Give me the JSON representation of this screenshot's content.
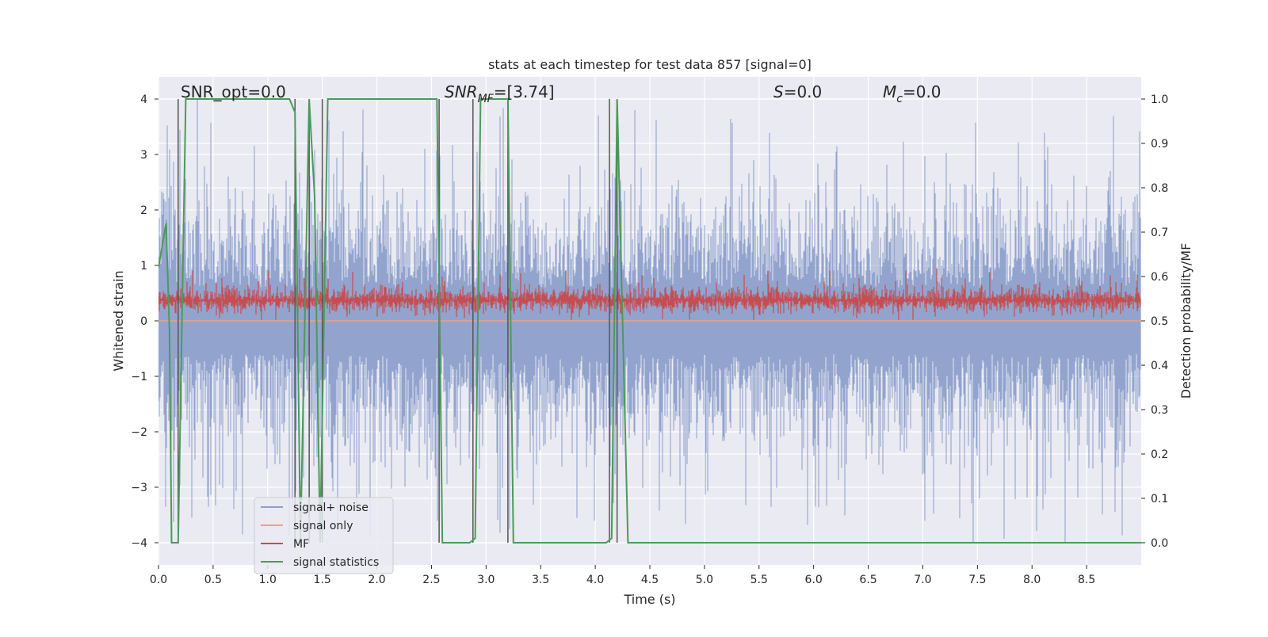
{
  "chart_data": {
    "type": "line",
    "title": "stats at each timestep for test data 857 [signal=0]",
    "xlabel": "Time (s)",
    "ylabel": "Whitened strain",
    "ylabel_right": "Detection probability/MF",
    "xlim": [
      0.0,
      9.0
    ],
    "ylim": [
      -4.4,
      4.4
    ],
    "ylim_right": [
      -0.05,
      1.05
    ],
    "grid": true,
    "legend_position": "lower-left",
    "x_ticks": [
      "0.0",
      "0.5",
      "1.0",
      "1.5",
      "2.0",
      "2.5",
      "3.0",
      "3.5",
      "4.0",
      "4.5",
      "5.0",
      "5.5",
      "6.0",
      "6.5",
      "7.0",
      "7.5",
      "8.0",
      "8.5"
    ],
    "y_ticks": [
      "4",
      "3",
      "2",
      "1",
      "0",
      "−1",
      "−2",
      "−3",
      "−4"
    ],
    "y_ticks_right": [
      "1.0",
      "0.9",
      "0.8",
      "0.7",
      "0.6",
      "0.5",
      "0.4",
      "0.3",
      "0.2",
      "0.1",
      "0.0"
    ],
    "annotations": {
      "snr_opt": "SNR_opt=0.0",
      "snr_mf_prefix": "SNR",
      "snr_mf_sub": "MF",
      "snr_mf_value": "=[3.74]",
      "s_symbol": "S",
      "s_value": "=0.0",
      "mc_symbol": "M",
      "mc_sub": "c",
      "mc_value": "=0.0"
    },
    "series": [
      {
        "name": "signal+ noise",
        "color": "#8da0cb",
        "kind": "noise",
        "envelope_pos_typical": 2.2,
        "envelope_neg_typical": -2.3,
        "peak_pos": 4.0,
        "peak_neg": -4.0
      },
      {
        "name": "signal only",
        "color": "#e8a28a",
        "kind": "flat",
        "values": [
          0.0
        ]
      },
      {
        "name": "MF",
        "color": "#c44e52",
        "kind": "noise",
        "band_low": 0.05,
        "band_high": 0.7,
        "peak_pos": 0.95
      },
      {
        "name": "signal statistics",
        "color": "#4c9a5a",
        "kind": "line",
        "x": [
          0.0,
          0.07,
          0.1,
          0.12,
          0.18,
          0.25,
          1.2,
          1.25,
          1.3,
          1.38,
          1.43,
          1.48,
          1.55,
          2.55,
          2.6,
          2.85,
          2.9,
          2.95,
          3.2,
          3.25,
          4.1,
          4.15,
          4.2,
          4.3,
          9.0
        ],
        "y": [
          0.62,
          0.72,
          0.48,
          0.0,
          0.0,
          1.0,
          1.0,
          0.97,
          0.0,
          1.0,
          0.78,
          0.0,
          1.0,
          1.0,
          0.0,
          0.0,
          0.01,
          1.0,
          1.0,
          0.0,
          0.0,
          0.01,
          1.0,
          0.0,
          0.0
        ]
      },
      {
        "name": "",
        "color": "#555555",
        "kind": "vlines",
        "x": [
          0.18,
          1.25,
          1.38,
          1.5,
          2.57,
          2.88,
          3.2,
          4.13,
          4.2
        ]
      }
    ]
  }
}
